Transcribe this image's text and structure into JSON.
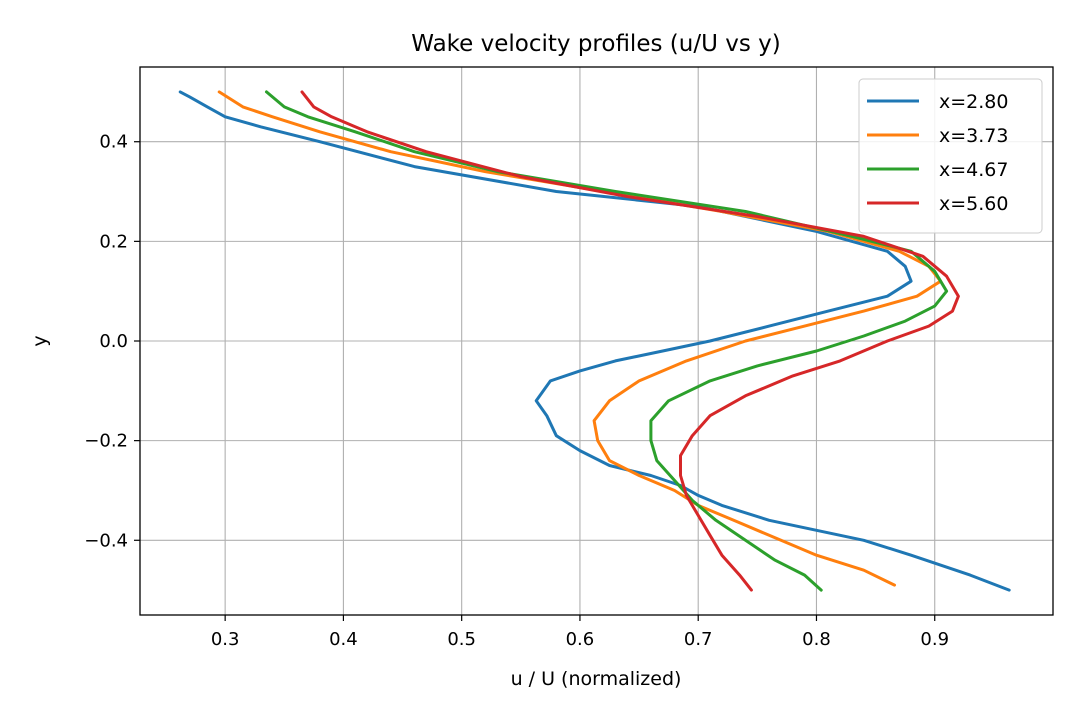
{
  "chart_data": {
    "type": "line",
    "title": "Wake velocity profiles (u/U vs y)",
    "xlabel": "u / U (normalized)",
    "ylabel": "y",
    "xlim": [
      0.228,
      1.0
    ],
    "ylim": [
      -0.55,
      0.55
    ],
    "xticks": [
      0.3,
      0.4,
      0.5,
      0.6,
      0.7,
      0.8,
      0.9
    ],
    "xtick_labels": [
      "0.3",
      "0.4",
      "0.5",
      "0.6",
      "0.7",
      "0.8",
      "0.9"
    ],
    "yticks": [
      0.4,
      0.2,
      0.0,
      -0.2,
      -0.4
    ],
    "ytick_labels": [
      "0.4",
      "0.2",
      "0.0",
      "−0.2",
      "−0.4"
    ],
    "grid": true,
    "legend_position": "top-right",
    "series": [
      {
        "name": "x=2.80",
        "color": "#1f77b4",
        "points": [
          [
            0.963,
            -0.5
          ],
          [
            0.93,
            -0.47
          ],
          [
            0.88,
            -0.43
          ],
          [
            0.84,
            -0.4
          ],
          [
            0.76,
            -0.36
          ],
          [
            0.72,
            -0.33
          ],
          [
            0.7,
            -0.31
          ],
          [
            0.685,
            -0.29
          ],
          [
            0.66,
            -0.27
          ],
          [
            0.625,
            -0.25
          ],
          [
            0.6,
            -0.22
          ],
          [
            0.58,
            -0.19
          ],
          [
            0.572,
            -0.15
          ],
          [
            0.563,
            -0.12
          ],
          [
            0.575,
            -0.08
          ],
          [
            0.6,
            -0.06
          ],
          [
            0.63,
            -0.04
          ],
          [
            0.67,
            -0.02
          ],
          [
            0.71,
            0.0
          ],
          [
            0.76,
            0.03
          ],
          [
            0.81,
            0.06
          ],
          [
            0.86,
            0.09
          ],
          [
            0.88,
            0.12
          ],
          [
            0.875,
            0.15
          ],
          [
            0.86,
            0.18
          ],
          [
            0.8,
            0.22
          ],
          [
            0.7,
            0.27
          ],
          [
            0.58,
            0.3
          ],
          [
            0.46,
            0.35
          ],
          [
            0.38,
            0.4
          ],
          [
            0.33,
            0.43
          ],
          [
            0.3,
            0.45
          ],
          [
            0.285,
            0.47
          ],
          [
            0.27,
            0.49
          ],
          [
            0.262,
            0.5
          ]
        ]
      },
      {
        "name": "x=3.73",
        "color": "#ff7f0e",
        "points": [
          [
            0.866,
            -0.49
          ],
          [
            0.84,
            -0.46
          ],
          [
            0.8,
            -0.43
          ],
          [
            0.77,
            -0.4
          ],
          [
            0.73,
            -0.36
          ],
          [
            0.7,
            -0.33
          ],
          [
            0.68,
            -0.3
          ],
          [
            0.65,
            -0.27
          ],
          [
            0.625,
            -0.24
          ],
          [
            0.615,
            -0.2
          ],
          [
            0.612,
            -0.16
          ],
          [
            0.625,
            -0.12
          ],
          [
            0.65,
            -0.08
          ],
          [
            0.69,
            -0.04
          ],
          [
            0.74,
            0.0
          ],
          [
            0.79,
            0.03
          ],
          [
            0.84,
            0.06
          ],
          [
            0.885,
            0.09
          ],
          [
            0.905,
            0.12
          ],
          [
            0.895,
            0.15
          ],
          [
            0.87,
            0.18
          ],
          [
            0.81,
            0.22
          ],
          [
            0.72,
            0.26
          ],
          [
            0.62,
            0.3
          ],
          [
            0.52,
            0.34
          ],
          [
            0.44,
            0.38
          ],
          [
            0.38,
            0.42
          ],
          [
            0.34,
            0.45
          ],
          [
            0.315,
            0.47
          ],
          [
            0.295,
            0.5
          ]
        ]
      },
      {
        "name": "x=4.67",
        "color": "#2ca02c",
        "points": [
          [
            0.804,
            -0.5
          ],
          [
            0.79,
            -0.47
          ],
          [
            0.765,
            -0.44
          ],
          [
            0.74,
            -0.4
          ],
          [
            0.715,
            -0.36
          ],
          [
            0.695,
            -0.32
          ],
          [
            0.68,
            -0.28
          ],
          [
            0.665,
            -0.24
          ],
          [
            0.66,
            -0.2
          ],
          [
            0.66,
            -0.16
          ],
          [
            0.675,
            -0.12
          ],
          [
            0.71,
            -0.08
          ],
          [
            0.75,
            -0.05
          ],
          [
            0.8,
            -0.02
          ],
          [
            0.84,
            0.01
          ],
          [
            0.875,
            0.04
          ],
          [
            0.9,
            0.07
          ],
          [
            0.91,
            0.1
          ],
          [
            0.9,
            0.14
          ],
          [
            0.88,
            0.18
          ],
          [
            0.83,
            0.21
          ],
          [
            0.74,
            0.26
          ],
          [
            0.63,
            0.3
          ],
          [
            0.53,
            0.34
          ],
          [
            0.46,
            0.38
          ],
          [
            0.41,
            0.42
          ],
          [
            0.37,
            0.45
          ],
          [
            0.35,
            0.47
          ],
          [
            0.335,
            0.5
          ]
        ]
      },
      {
        "name": "x=5.60",
        "color": "#d62728",
        "points": [
          [
            0.745,
            -0.5
          ],
          [
            0.735,
            -0.47
          ],
          [
            0.72,
            -0.43
          ],
          [
            0.71,
            -0.39
          ],
          [
            0.7,
            -0.35
          ],
          [
            0.69,
            -0.31
          ],
          [
            0.685,
            -0.27
          ],
          [
            0.685,
            -0.23
          ],
          [
            0.695,
            -0.19
          ],
          [
            0.71,
            -0.15
          ],
          [
            0.74,
            -0.11
          ],
          [
            0.78,
            -0.07
          ],
          [
            0.82,
            -0.04
          ],
          [
            0.86,
            0.0
          ],
          [
            0.895,
            0.03
          ],
          [
            0.915,
            0.06
          ],
          [
            0.92,
            0.09
          ],
          [
            0.91,
            0.13
          ],
          [
            0.89,
            0.17
          ],
          [
            0.84,
            0.21
          ],
          [
            0.75,
            0.25
          ],
          [
            0.64,
            0.29
          ],
          [
            0.55,
            0.33
          ],
          [
            0.47,
            0.38
          ],
          [
            0.42,
            0.42
          ],
          [
            0.39,
            0.45
          ],
          [
            0.375,
            0.47
          ],
          [
            0.365,
            0.5
          ]
        ]
      }
    ]
  }
}
